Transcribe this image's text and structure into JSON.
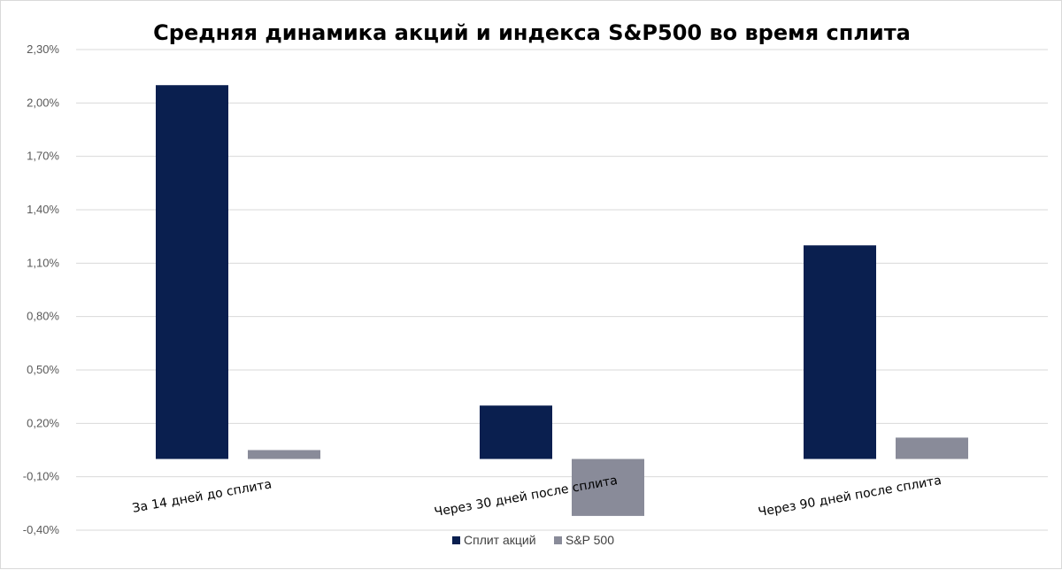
{
  "chart_data": {
    "type": "bar",
    "title": "Средняя динамика акций и индекса S&P500 во время сплита",
    "xlabel": "",
    "ylabel": "",
    "categories": [
      "За 14 дней до сплита",
      "Через 30 дней после сплита",
      "Через 90 дней после сплита"
    ],
    "series": [
      {
        "name": "Сплит акций",
        "values": [
          2.1,
          0.3,
          1.2
        ],
        "color": "#0a1f4f"
      },
      {
        "name": "S&P 500",
        "values": [
          0.05,
          -0.32,
          0.12
        ],
        "color": "#898b99"
      }
    ],
    "ylim": [
      -0.4,
      2.3
    ],
    "yticks": [
      2.3,
      2.0,
      1.7,
      1.4,
      1.1,
      0.8,
      0.5,
      0.2,
      -0.1,
      -0.4
    ],
    "ytick_labels": [
      "2,30%",
      "2,00%",
      "1,70%",
      "1,40%",
      "1,10%",
      "0,80%",
      "0,50%",
      "0,20%",
      "-0,10%",
      "-0,40%"
    ],
    "grid": true,
    "legend_position": "bottom"
  }
}
